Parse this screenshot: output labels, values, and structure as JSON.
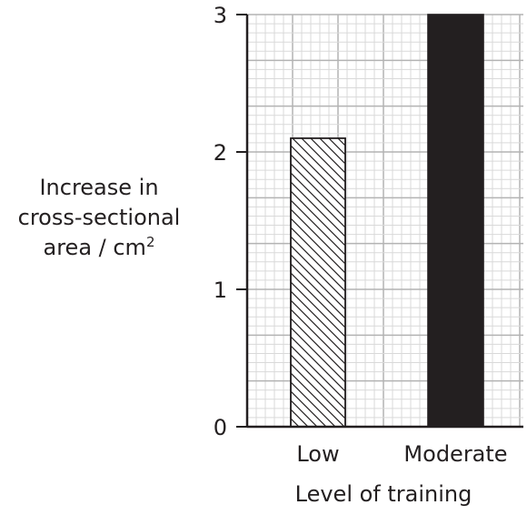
{
  "chart_data": {
    "type": "bar",
    "categories": [
      "Low",
      "Moderate"
    ],
    "values": [
      2.1,
      3
    ],
    "ylabel": {
      "line1": "Increase in",
      "line2": "cross-sectional",
      "line3": "area / cm",
      "superscript": "2"
    },
    "xlabel": "Level of training",
    "ylim": [
      0,
      3
    ],
    "yticks": [
      "0",
      "1",
      "2",
      "3"
    ],
    "grid": true,
    "bar_styles": [
      "diagonal-hatch",
      "solid-black"
    ],
    "colors": {
      "bar_fill": "#231f20",
      "grid_minor": "#d9d9d9",
      "grid_major": "#b3b3b3",
      "axis": "#231f20"
    }
  }
}
